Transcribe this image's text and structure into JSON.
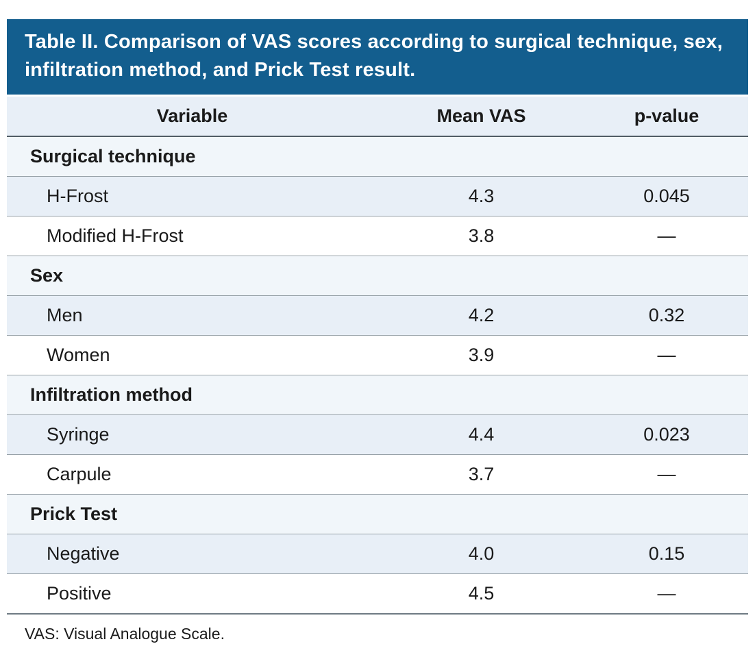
{
  "table": {
    "title": "Table II. Comparison of VAS scores according to surgical technique, sex, infiltration method, and Prick Test result.",
    "columns": [
      "Variable",
      "Mean VAS",
      "p-value"
    ],
    "sections": [
      {
        "label": "Surgical technique",
        "rows": [
          {
            "variable": "H-Frost",
            "mean_vas": "4.3",
            "p_value": "0.045"
          },
          {
            "variable": "Modified H-Frost",
            "mean_vas": "3.8",
            "p_value": "—"
          }
        ]
      },
      {
        "label": "Sex",
        "rows": [
          {
            "variable": "Men",
            "mean_vas": "4.2",
            "p_value": "0.32"
          },
          {
            "variable": "Women",
            "mean_vas": "3.9",
            "p_value": "—"
          }
        ]
      },
      {
        "label": "Infiltration method",
        "rows": [
          {
            "variable": "Syringe",
            "mean_vas": "4.4",
            "p_value": "0.023"
          },
          {
            "variable": "Carpule",
            "mean_vas": "3.7",
            "p_value": "—"
          }
        ]
      },
      {
        "label": "Prick Test",
        "rows": [
          {
            "variable": "Negative",
            "mean_vas": "4.0",
            "p_value": "0.15"
          },
          {
            "variable": "Positive",
            "mean_vas": "4.5",
            "p_value": "—"
          }
        ]
      }
    ],
    "footnote": "VAS: Visual Analogue Scale."
  },
  "colors": {
    "title_bar_blue": "#135e8e",
    "row_tint_blue": "#e8eff7",
    "section_row_tint": "#f1f6fa",
    "row_divider_gray": "#97a1a8",
    "text_dark": "#1a1a1a",
    "title_text": "#ffffff"
  },
  "chart_data": {
    "type": "table",
    "title": "Table II. Comparison of VAS scores according to surgical technique, sex, infiltration method, and Prick Test result.",
    "columns": [
      "Variable",
      "Mean VAS",
      "p-value"
    ],
    "rows": [
      [
        "Surgical technique",
        "",
        ""
      ],
      [
        "H-Frost",
        "4.3",
        "0.045"
      ],
      [
        "Modified H-Frost",
        "3.8",
        "—"
      ],
      [
        "Sex",
        "",
        ""
      ],
      [
        "Men",
        "4.2",
        "0.32"
      ],
      [
        "Women",
        "3.9",
        "—"
      ],
      [
        "Infiltration method",
        "",
        ""
      ],
      [
        "Syringe",
        "4.4",
        "0.023"
      ],
      [
        "Carpule",
        "3.7",
        "—"
      ],
      [
        "Prick Test",
        "",
        ""
      ],
      [
        "Negative",
        "4.0",
        "0.15"
      ],
      [
        "Positive",
        "4.5",
        "—"
      ]
    ],
    "footnote": "VAS: Visual Analogue Scale."
  }
}
